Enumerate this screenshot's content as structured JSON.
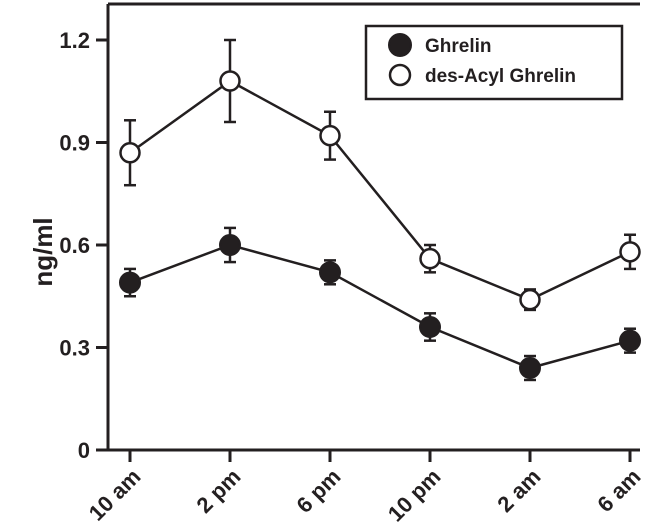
{
  "chart_data": {
    "type": "line",
    "title": "",
    "xlabel": "",
    "ylabel": "ng/ml",
    "categories": [
      "10 am",
      "2 pm",
      "6 pm",
      "10 pm",
      "2 am",
      "6 am"
    ],
    "y_ticks": [
      "0",
      "0.3",
      "0.6",
      "0.9",
      "1.2"
    ],
    "ylim": [
      0,
      1.3
    ],
    "grid": false,
    "legend_position": "top-right",
    "series": [
      {
        "name": "Ghrelin",
        "marker": "filled-circle",
        "color": "#231f20",
        "values": [
          0.49,
          0.6,
          0.52,
          0.36,
          0.24,
          0.32
        ],
        "error": [
          0.04,
          0.05,
          0.035,
          0.04,
          0.035,
          0.035
        ]
      },
      {
        "name": "des-Acyl Ghrelin",
        "marker": "open-circle",
        "color": "#231f20",
        "values": [
          0.87,
          1.08,
          0.92,
          0.56,
          0.44,
          0.58
        ],
        "error": [
          0.095,
          0.12,
          0.07,
          0.04,
          0.03,
          0.05
        ]
      }
    ]
  }
}
